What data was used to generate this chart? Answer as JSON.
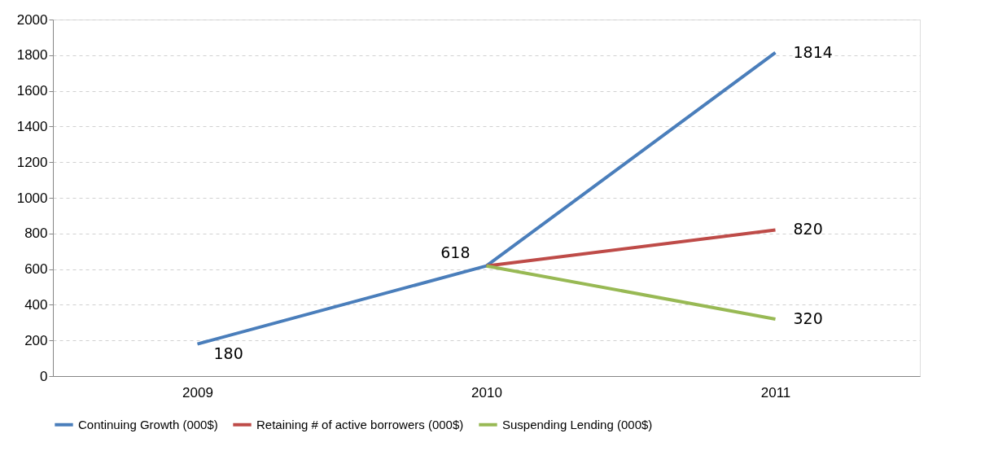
{
  "chart_data": {
    "type": "line",
    "categories": [
      "2009",
      "2010",
      "2011"
    ],
    "series": [
      {
        "name": "Continuing Growth (000$)",
        "color": "#4a7ebb",
        "values": [
          180,
          618,
          1814
        ],
        "value_labels": [
          "180",
          "618",
          "1814"
        ]
      },
      {
        "name": "Retaining # of active borrowers (000$)",
        "color": "#be4b48",
        "values": [
          null,
          618,
          820
        ],
        "value_labels": [
          null,
          null,
          "820"
        ]
      },
      {
        "name": "Suspending Lending (000$)",
        "color": "#98b954",
        "values": [
          null,
          618,
          320
        ],
        "value_labels": [
          null,
          null,
          "320"
        ]
      }
    ],
    "ylim": [
      0,
      2000
    ],
    "yticks": [
      0,
      200,
      400,
      600,
      800,
      1000,
      1200,
      1400,
      1600,
      1800,
      2000
    ],
    "grid": "y",
    "legend": "bottom",
    "marker": "none",
    "line_style": "solid"
  }
}
